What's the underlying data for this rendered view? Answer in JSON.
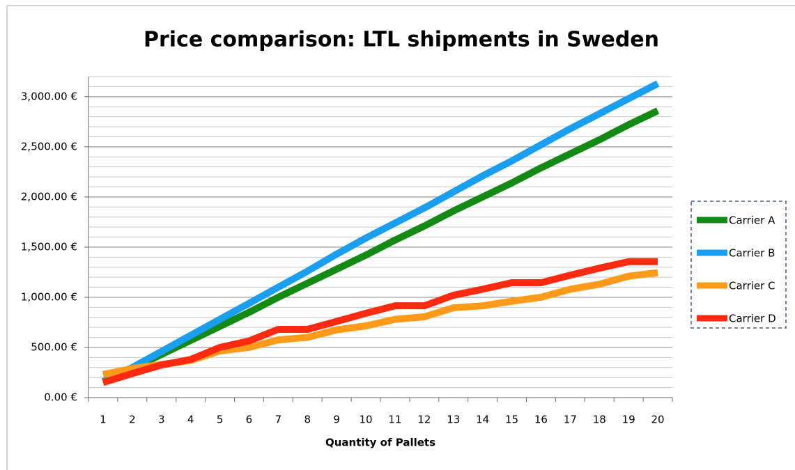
{
  "chart_data": {
    "type": "line",
    "title": "Price comparison: LTL shipments in Sweden",
    "xlabel": "Quantity of Pallets",
    "categories": [
      "1",
      "2",
      "3",
      "4",
      "5",
      "6",
      "7",
      "8",
      "9",
      "10",
      "11",
      "12",
      "13",
      "14",
      "15",
      "16",
      "17",
      "18",
      "19",
      "20"
    ],
    "series": [
      {
        "name": "Carrier A",
        "color": "#138a13",
        "values": [
          160,
          290,
          430,
          570,
          710,
          850,
          1000,
          1140,
          1280,
          1420,
          1570,
          1710,
          1860,
          2000,
          2140,
          2290,
          2430,
          2570,
          2720,
          2860
        ]
      },
      {
        "name": "Carrier B",
        "color": "#1a9ef0",
        "values": [
          160,
          300,
          460,
          620,
          780,
          940,
          1100,
          1260,
          1430,
          1590,
          1740,
          1890,
          2050,
          2210,
          2360,
          2520,
          2680,
          2830,
          2980,
          3130
        ]
      },
      {
        "name": "Carrier C",
        "color": "#ff9a1a",
        "values": [
          230,
          290,
          330,
          370,
          465,
          500,
          575,
          600,
          675,
          715,
          780,
          805,
          895,
          915,
          960,
          1000,
          1080,
          1130,
          1210,
          1245
        ]
      },
      {
        "name": "Carrier D",
        "color": "#ff2a10",
        "values": [
          150,
          240,
          325,
          380,
          500,
          565,
          680,
          680,
          760,
          840,
          915,
          915,
          1020,
          1080,
          1145,
          1145,
          1220,
          1290,
          1355,
          1355
        ]
      }
    ],
    "ylim": [
      0,
      3200
    ],
    "yticks": [
      {
        "value": 0,
        "label": "0.00 €"
      },
      {
        "value": 500,
        "label": "500.00 €"
      },
      {
        "value": 1000,
        "label": "1,000.00 €"
      },
      {
        "value": 1500,
        "label": "1,500.00 €"
      },
      {
        "value": 2000,
        "label": "2,000.00 €"
      },
      {
        "value": 2500,
        "label": "2,500.00 €"
      },
      {
        "value": 3000,
        "label": "3,000.00 €"
      }
    ],
    "minor_grid_step": 100,
    "grid": true,
    "legend": "right"
  }
}
